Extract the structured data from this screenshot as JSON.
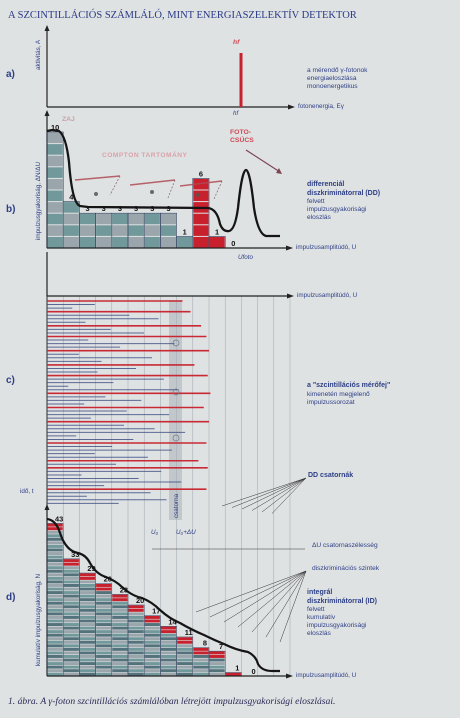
{
  "title": "A SZCINTILLÁCIÓS SZÁMLÁLÓ, MINT ENERGIASZELEKTÍV DETEKTOR",
  "caption": "1. ábra. A γ-foton szcintillációs számlálóban létrejött impulzusgyakorisági eloszlásai.",
  "colors": {
    "red": "#c8202c",
    "navy": "#2a3a86",
    "teal": "#5e8c8e",
    "gray": "#8e9aa2"
  },
  "sections": {
    "a": {
      "letter": "a)",
      "ylabel": "aktivitás, A",
      "peak_label": "hf",
      "tick_label": "hf",
      "xlabel": "fotonenergia, Eγ",
      "desc": [
        "a mérendő γ-fotonok",
        "energiaeloszlása",
        "monoenergetikus"
      ]
    },
    "b": {
      "letter": "b)",
      "ylabel": "impulzusgyakoriság, ΔN/ΔU",
      "noise_label": "ZAJ",
      "compton_label": "COMPTON TARTOMÁNY",
      "photopeak_label": [
        "FOTO-",
        "CSÚCS"
      ],
      "utoto_label": "Ufoto",
      "xlabel": "impulzusamplitúdó, U",
      "desc_bold": [
        "differenciál",
        "diszkriminátorral (DD)"
      ],
      "desc": [
        "felvett",
        "impulzusgyakorisági",
        "eloszlás"
      ]
    },
    "c": {
      "letter": "c)",
      "xlabel": "impulzusamplitúdó, U",
      "desc_bold": "a \"szcintillációs mérőfej\"",
      "desc": [
        "kimenetén megjelenő",
        "impulzussorozat"
      ],
      "dd_label": "DD csatornák",
      "time_label": "idő, t",
      "channel_label": "csatorna",
      "u0_label": "U₀",
      "u0du_label": "U₀+ΔU"
    },
    "d": {
      "letter": "d)",
      "ylabel": "kumulatív impulzusgyakoriság, N",
      "du_label": "ΔU csatornaszélesség",
      "disc_label": "diszkriminációs szintek",
      "desc_bold": [
        "integrál",
        "diszkriminátorral (ID)"
      ],
      "desc": [
        "felvett",
        "kumulatív",
        "impulzusgyakorisági",
        "eloszlás"
      ],
      "xlabel": "impulzusamplitúdó, U"
    }
  },
  "chart_data": [
    {
      "type": "bar",
      "name": "b",
      "title": "",
      "xlabel": "impulzusamplitúdó, U",
      "ylabel": "impulzusgyakoriság, ΔN/ΔU",
      "values": [
        10,
        4,
        3,
        3,
        3,
        3,
        3,
        3,
        1,
        6,
        1,
        0
      ]
    },
    {
      "type": "bar",
      "name": "d",
      "title": "",
      "xlabel": "impulzusamplitúdó, U",
      "ylabel": "kumulatív impulzusgyakoriság, N",
      "values": [
        43,
        33,
        29,
        26,
        23,
        20,
        17,
        14,
        11,
        8,
        7,
        1,
        0
      ]
    }
  ]
}
